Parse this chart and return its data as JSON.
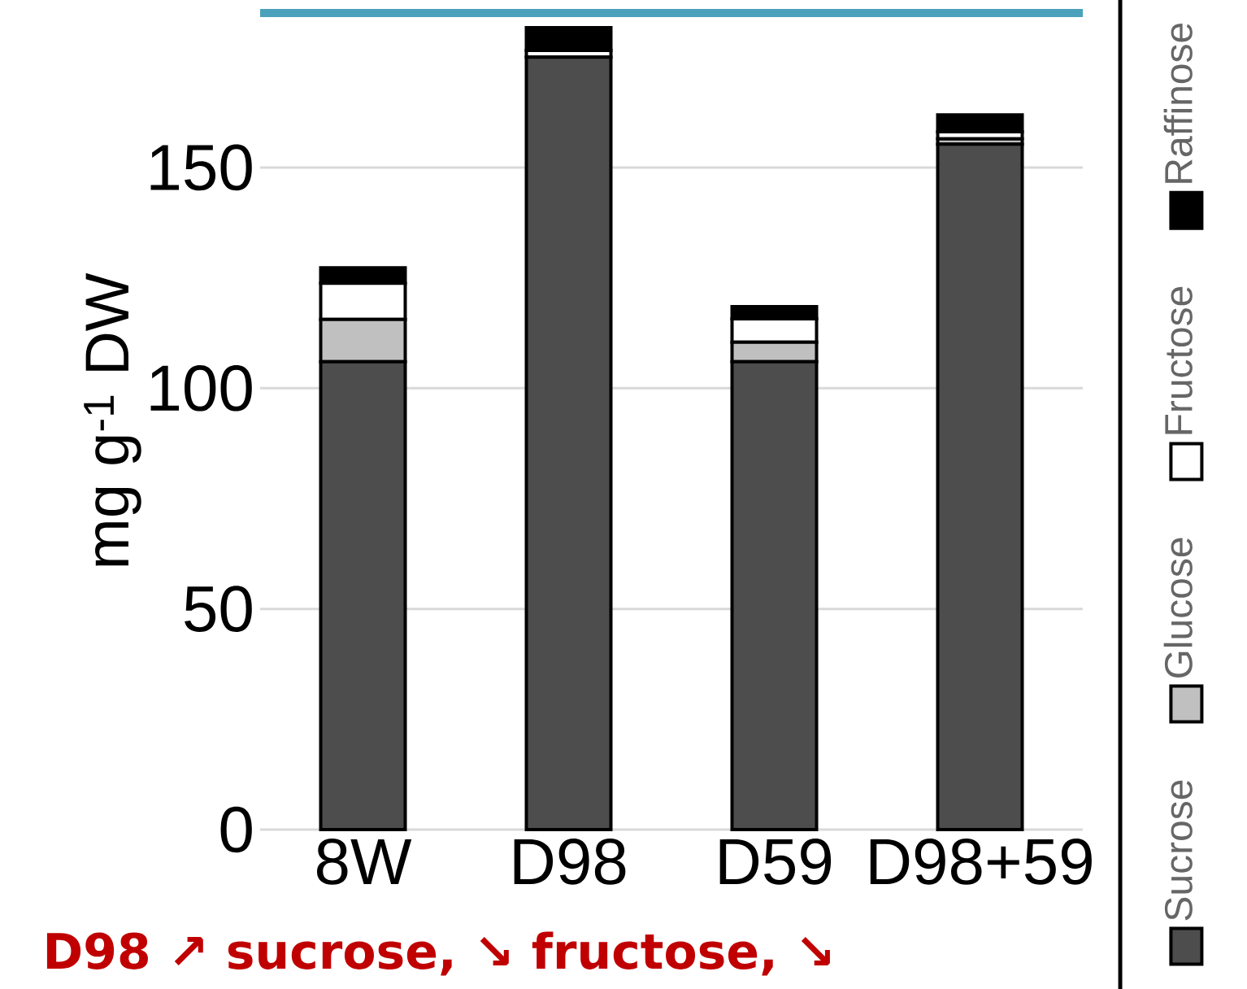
{
  "chart_data": {
    "type": "bar",
    "stacked": true,
    "categories": [
      "8W",
      "D98",
      "D59",
      "D98+59"
    ],
    "ylabel": "mg g$^{-1}$ DW",
    "ylim": [
      0,
      185
    ],
    "yticks": [
      0,
      50,
      100,
      150
    ],
    "grid": "y",
    "legend": "right",
    "series": [
      {
        "name": "Sucrose",
        "color": "#4d4d4d",
        "values": [
          106.0,
          175.0,
          106.0,
          155.3
        ]
      },
      {
        "name": "Glucose",
        "color": "#c0c0c0",
        "values": [
          9.6,
          null,
          4.4,
          1.2
        ]
      },
      {
        "name": "Fructose",
        "color": "#ffffff",
        "values": [
          8.2,
          1.5,
          5.3,
          1.6
        ]
      },
      {
        "name": "Raffinose",
        "color": "#000000",
        "values": [
          3.5,
          5.2,
          2.8,
          3.8
        ]
      }
    ],
    "annotations": [
      "D98 ↗ sucrose, ↘ fructose, ↘"
    ]
  }
}
